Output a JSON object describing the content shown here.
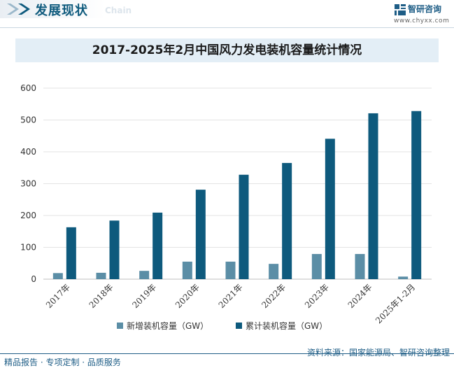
{
  "header": {
    "title": "发展现状",
    "subtitle": "Chain"
  },
  "logo": {
    "name": "智研咨询",
    "site": "www.chyxx.com"
  },
  "footer": {
    "left": "精品报告 · 专项定制 · 品质服务",
    "source": "资料来源：国家能源局、智研咨询整理"
  },
  "colors": {
    "series_new": "#5b8ea6",
    "series_cum": "#0e5a7d",
    "title_band": "#e3eef6",
    "brand": "#1e5d86"
  },
  "chart_data": {
    "type": "bar",
    "title": "2017-2025年2月中国风力发电装机容量统计情况",
    "xlabel": "",
    "ylabel": "",
    "ylim": [
      0,
      600
    ],
    "yticks": [
      0,
      100,
      200,
      300,
      400,
      500,
      600
    ],
    "grid": true,
    "legend_position": "bottom-center",
    "categories": [
      "2017年",
      "2018年",
      "2019年",
      "2020年",
      "2021年",
      "2022年",
      "2023年",
      "2024年",
      "2025年1-2月"
    ],
    "series": [
      {
        "name": "新增装机容量（GW）",
        "values": [
          19,
          20,
          26,
          55,
          55,
          48,
          79,
          79,
          8
        ]
      },
      {
        "name": "累计装机容量（GW）",
        "values": [
          163,
          184,
          209,
          281,
          328,
          365,
          441,
          521,
          528
        ]
      }
    ]
  }
}
